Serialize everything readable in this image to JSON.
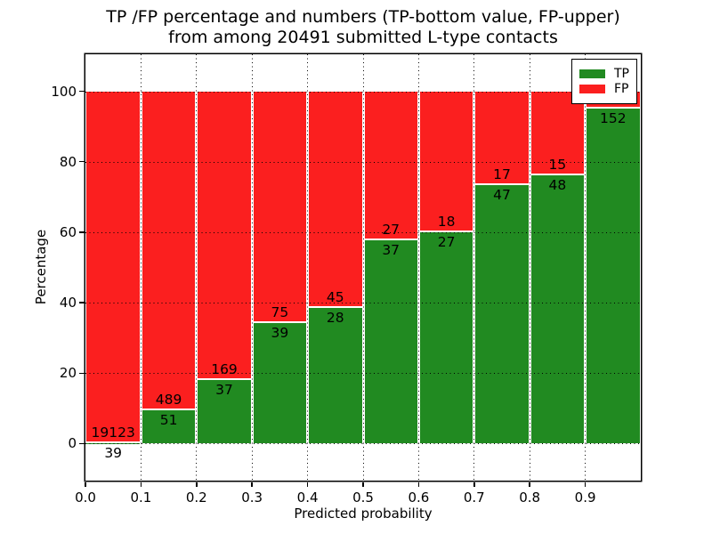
{
  "figure": {
    "title_line1": "TP /FP percentage and numbers (TP-bottom value, FP-upper)",
    "title_line2": "from among 20491 submitted L-type contacts",
    "xlabel": "Predicted probability",
    "ylabel": "Percentage"
  },
  "legend": {
    "position": "upper-right",
    "items": [
      {
        "label": "TP",
        "color": "#218a21",
        "swatch": "tp-swatch"
      },
      {
        "label": "FP",
        "color": "#fb1f1f",
        "swatch": "fp-swatch"
      }
    ]
  },
  "chart_data": {
    "type": "bar",
    "stacked": true,
    "percentage_stack": true,
    "title": "TP /FP percentage and numbers (TP-bottom value, FP-upper) from among 20491 submitted L-type contacts",
    "xlabel": "Predicted probability",
    "ylabel": "Percentage",
    "xlim": [
      0.0,
      1.0
    ],
    "ylim": [
      -10.5,
      110.5
    ],
    "grid": true,
    "grid_style": "dotted",
    "y_ticks": [
      0,
      20,
      40,
      60,
      80,
      100
    ],
    "x_ticks": [
      0.0,
      0.1,
      0.2,
      0.3,
      0.4,
      0.5,
      0.6,
      0.7,
      0.8,
      0.9
    ],
    "x_tick_labels": [
      "0.0",
      "0.1",
      "0.2",
      "0.3",
      "0.4",
      "0.5",
      "0.6",
      "0.7",
      "0.8",
      "0.9"
    ],
    "colors": {
      "tp": "#218a21",
      "fp": "#fb1f1f",
      "bar_edge": "#ffffff"
    },
    "series": [
      {
        "name": "TP",
        "color": "#218a21",
        "counts": [
          39,
          51,
          37,
          39,
          28,
          37,
          27,
          47,
          48,
          152
        ],
        "pct": [
          0.2,
          9.4,
          18.0,
          34.2,
          38.4,
          57.8,
          60.0,
          73.4,
          76.2,
          95.0
        ]
      },
      {
        "name": "FP",
        "color": "#fb1f1f",
        "counts": [
          19123,
          489,
          169,
          75,
          45,
          27,
          18,
          17,
          15,
          null
        ],
        "pct": [
          99.8,
          90.6,
          82.0,
          65.8,
          61.6,
          42.2,
          40.0,
          26.6,
          23.8,
          5.0
        ]
      }
    ],
    "bars": [
      {
        "bin": "0.0-0.1",
        "tp_pct": 0.2,
        "tp_label": "39",
        "fp_label": "19123"
      },
      {
        "bin": "0.1-0.2",
        "tp_pct": 9.4,
        "tp_label": "51",
        "fp_label": "489"
      },
      {
        "bin": "0.2-0.3",
        "tp_pct": 18.0,
        "tp_label": "37",
        "fp_label": "169"
      },
      {
        "bin": "0.3-0.4",
        "tp_pct": 34.2,
        "tp_label": "39",
        "fp_label": "75"
      },
      {
        "bin": "0.4-0.5",
        "tp_pct": 38.4,
        "tp_label": "28",
        "fp_label": "45"
      },
      {
        "bin": "0.5-0.6",
        "tp_pct": 57.8,
        "tp_label": "37",
        "fp_label": "27"
      },
      {
        "bin": "0.6-0.7",
        "tp_pct": 60.0,
        "tp_label": "27",
        "fp_label": "18"
      },
      {
        "bin": "0.7-0.8",
        "tp_pct": 73.4,
        "tp_label": "47",
        "fp_label": "17"
      },
      {
        "bin": "0.8-0.9",
        "tp_pct": 76.2,
        "tp_label": "48",
        "fp_label": "15"
      },
      {
        "bin": "0.9-1.0",
        "tp_pct": 95.0,
        "tp_label": "152",
        "fp_label": null
      }
    ]
  }
}
